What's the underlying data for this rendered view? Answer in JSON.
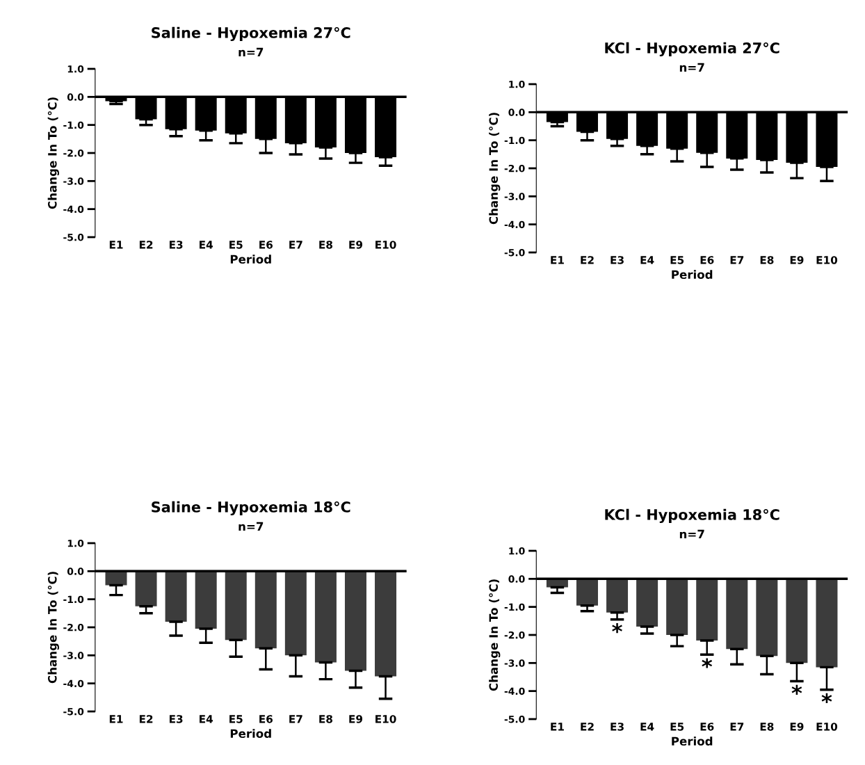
{
  "chart_data": [
    {
      "type": "bar",
      "title": "Saline - Hypoxemia 27°C",
      "subtitle": "n=7",
      "xlabel": "Period",
      "ylabel": "Change In To (°C)",
      "categories": [
        "E1",
        "E2",
        "E3",
        "E4",
        "E5",
        "E6",
        "E7",
        "E8",
        "E9",
        "E10"
      ],
      "values": [
        -0.15,
        -0.8,
        -1.15,
        -1.2,
        -1.3,
        -1.5,
        -1.65,
        -1.8,
        -2.0,
        -2.15
      ],
      "errors": [
        [
          -0.25,
          -0.15
        ],
        [
          -1.0,
          -0.8
        ],
        [
          -1.4,
          -1.15
        ],
        [
          -1.55,
          -1.2
        ],
        [
          -1.65,
          -1.3
        ],
        [
          -2.0,
          -1.5
        ],
        [
          -2.05,
          -1.65
        ],
        [
          -2.2,
          -1.8
        ],
        [
          -2.35,
          -2.0
        ],
        [
          -2.45,
          -2.15
        ]
      ],
      "color": "#000000",
      "ylim": [
        -5.0,
        1.0
      ],
      "yticks": [
        {
          "value": 1,
          "label": "1.0"
        },
        {
          "value": 0,
          "label": "0.0"
        },
        {
          "value": -1,
          "label": "-1.0"
        },
        {
          "value": -2,
          "label": "-2.0"
        },
        {
          "value": -3,
          "label": "-3.0"
        },
        {
          "value": -4,
          "label": "-4.0"
        },
        {
          "value": -5,
          "label": "-5.0"
        }
      ],
      "ref_lines": [
        {
          "axis": "y",
          "value": 0
        }
      ],
      "grid": false,
      "legend": false
    },
    {
      "type": "bar",
      "title": "KCl - Hypoxemia 27°C",
      "subtitle": "n=7",
      "xlabel": "Period",
      "ylabel": "Change In To (°C)",
      "categories": [
        "E1",
        "E2",
        "E3",
        "E4",
        "E5",
        "E6",
        "E7",
        "E8",
        "E9",
        "E10"
      ],
      "values": [
        -0.35,
        -0.7,
        -0.95,
        -1.2,
        -1.3,
        -1.45,
        -1.65,
        -1.7,
        -1.8,
        -1.95
      ],
      "errors": [
        [
          -0.5,
          -0.35
        ],
        [
          -1.0,
          -0.7
        ],
        [
          -1.2,
          -0.95
        ],
        [
          -1.5,
          -1.2
        ],
        [
          -1.75,
          -1.3
        ],
        [
          -1.95,
          -1.45
        ],
        [
          -2.05,
          -1.65
        ],
        [
          -2.15,
          -1.7
        ],
        [
          -2.35,
          -1.8
        ],
        [
          -2.45,
          -1.95
        ]
      ],
      "color": "#000000",
      "ylim": [
        -5.0,
        1.0
      ],
      "yticks": [
        {
          "value": 1,
          "label": "1.0"
        },
        {
          "value": 0,
          "label": "0.0"
        },
        {
          "value": -1,
          "label": "-1.0"
        },
        {
          "value": -2,
          "label": "-2.0"
        },
        {
          "value": -3,
          "label": "-3.0"
        },
        {
          "value": -4,
          "label": "-4.0"
        },
        {
          "value": -5,
          "label": "-5.0"
        }
      ],
      "ref_lines": [
        {
          "axis": "y",
          "value": 0
        }
      ],
      "grid": false,
      "legend": false
    },
    {
      "type": "bar",
      "title": "Saline - Hypoxemia 18°C",
      "subtitle": "n=7",
      "xlabel": "Period",
      "ylabel": "Change In To (°C)",
      "categories": [
        "E1",
        "E2",
        "E3",
        "E4",
        "E5",
        "E6",
        "E7",
        "E8",
        "E9",
        "E10"
      ],
      "values": [
        -0.5,
        -1.25,
        -1.8,
        -2.05,
        -2.45,
        -2.75,
        -3.0,
        -3.25,
        -3.55,
        -3.75
      ],
      "errors": [
        [
          -0.85,
          -0.5
        ],
        [
          -1.5,
          -1.25
        ],
        [
          -2.3,
          -1.8
        ],
        [
          -2.55,
          -2.05
        ],
        [
          -3.05,
          -2.45
        ],
        [
          -3.5,
          -2.75
        ],
        [
          -3.75,
          -3.0
        ],
        [
          -3.85,
          -3.25
        ],
        [
          -4.15,
          -3.55
        ],
        [
          -4.55,
          -3.75
        ]
      ],
      "color": "#3c3c3c",
      "ylim": [
        -5.0,
        1.0
      ],
      "yticks": [
        {
          "value": 1,
          "label": "1.0"
        },
        {
          "value": 0,
          "label": "0.0"
        },
        {
          "value": -1,
          "label": "-1.0"
        },
        {
          "value": -2,
          "label": "-2.0"
        },
        {
          "value": -3,
          "label": "-3.0"
        },
        {
          "value": -4,
          "label": "-4.0"
        },
        {
          "value": -5,
          "label": "-5.0"
        }
      ],
      "ref_lines": [
        {
          "axis": "y",
          "value": 0
        }
      ],
      "grid": false,
      "legend": false
    },
    {
      "type": "bar",
      "title": "KCl - Hypoxemia 18°C",
      "subtitle": "n=7",
      "xlabel": "Period",
      "ylabel": "Change In To (°C)",
      "categories": [
        "E1",
        "E2",
        "E3",
        "E4",
        "E5",
        "E6",
        "E7",
        "E8",
        "E9",
        "E10"
      ],
      "values": [
        -0.3,
        -0.95,
        -1.2,
        -1.7,
        -2.0,
        -2.2,
        -2.5,
        -2.75,
        -3.0,
        -3.15
      ],
      "errors": [
        [
          -0.5,
          -0.3
        ],
        [
          -1.15,
          -0.95
        ],
        [
          -1.45,
          -1.2
        ],
        [
          -1.95,
          -1.7
        ],
        [
          -2.4,
          -2.0
        ],
        [
          -2.7,
          -2.2
        ],
        [
          -3.05,
          -2.5
        ],
        [
          -3.4,
          -2.75
        ],
        [
          -3.65,
          -3.0
        ],
        [
          -3.95,
          -3.15
        ]
      ],
      "color": "#3c3c3c",
      "ylim": [
        -5.0,
        1.0
      ],
      "yticks": [
        {
          "value": 1,
          "label": "1.0"
        },
        {
          "value": 0,
          "label": "0.0"
        },
        {
          "value": -1,
          "label": "-1.0"
        },
        {
          "value": -2,
          "label": "-2.0"
        },
        {
          "value": -3,
          "label": "-3.0"
        },
        {
          "value": -4,
          "label": "-4.0"
        },
        {
          "value": -5,
          "label": "-5.0"
        }
      ],
      "ref_lines": [
        {
          "axis": "y",
          "value": 0
        }
      ],
      "grid": false,
      "legend": false,
      "annotations": [
        {
          "text": "*",
          "x": "E3",
          "y": -1.45
        },
        {
          "text": "*",
          "x": "E6",
          "y": -2.7
        },
        {
          "text": "*",
          "x": "E9",
          "y": -3.65
        },
        {
          "text": "*",
          "x": "E10",
          "y": -3.95
        }
      ]
    }
  ]
}
